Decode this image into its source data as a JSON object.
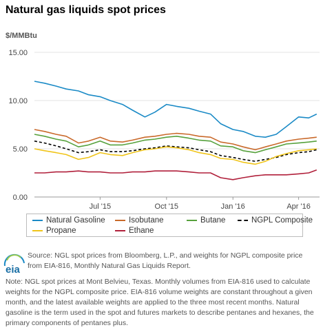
{
  "title": "Natural gas liquids spot prices",
  "logo_text": "eia",
  "source": "Source: NGL spot prices from Bloomberg, L.P., and weights for NGPL composite price from EIA-816, Monthly Natural Gas Liquids Report.",
  "note": "Note: NGL spot prices at Mont Belvieu, Texas. Monthly volumes from EIA-816 used to calculate weights for the NGPL composite price. EIA-816 volume weights are constant throughout a given month, and the latest available weights are applied to the three most recent months. Natural gasoline is the term used in the spot and futures markets to describe pentanes and hexanes, the primary components of pentanes plus.",
  "chart_data": {
    "type": "line",
    "title": "Natural gas liquids spot prices",
    "ylabel": "$/MMBtu",
    "xlabel": "",
    "ylim": [
      0,
      15
    ],
    "yticks": [
      "0.00",
      "5.00",
      "10.00",
      "15.00"
    ],
    "xlim": [
      "2015-04-01",
      "2016-04-30"
    ],
    "xticks": [
      {
        "date": "2015-07-01",
        "label": "Jul '15"
      },
      {
        "date": "2015-10-01",
        "label": "Oct '15"
      },
      {
        "date": "2016-01-01",
        "label": "Jan '16"
      },
      {
        "date": "2016-04-01",
        "label": "Apr '16"
      }
    ],
    "grid": "horizontal",
    "legend": "bottom",
    "x": [
      "2015-04-01",
      "2015-04-15",
      "2015-05-01",
      "2015-05-15",
      "2015-06-01",
      "2015-06-15",
      "2015-07-01",
      "2015-07-15",
      "2015-08-01",
      "2015-08-15",
      "2015-09-01",
      "2015-09-15",
      "2015-10-01",
      "2015-10-15",
      "2015-11-01",
      "2015-11-15",
      "2015-12-01",
      "2015-12-15",
      "2016-01-01",
      "2016-01-15",
      "2016-02-01",
      "2016-02-15",
      "2016-03-01",
      "2016-03-15",
      "2016-04-01",
      "2016-04-15",
      "2016-04-26"
    ],
    "series": [
      {
        "name": "Natural Gasoline",
        "color": "#1a8ac6",
        "dash": false,
        "values": [
          12.0,
          11.8,
          11.5,
          11.2,
          11.0,
          10.6,
          10.4,
          10.0,
          9.6,
          9.0,
          8.3,
          8.8,
          9.6,
          9.4,
          9.2,
          8.9,
          8.6,
          7.6,
          7.0,
          6.8,
          6.3,
          6.2,
          6.5,
          7.3,
          8.3,
          8.2,
          8.6
        ]
      },
      {
        "name": "Isobutane",
        "color": "#c9692a",
        "dash": false,
        "values": [
          7.0,
          6.8,
          6.5,
          6.3,
          5.6,
          5.8,
          6.2,
          5.8,
          5.7,
          5.9,
          6.2,
          6.3,
          6.5,
          6.6,
          6.5,
          6.3,
          6.2,
          5.7,
          5.5,
          5.2,
          4.9,
          5.2,
          5.5,
          5.8,
          6.0,
          6.1,
          6.2
        ]
      },
      {
        "name": "Butane",
        "color": "#56a13c",
        "dash": false,
        "values": [
          6.5,
          6.3,
          6.0,
          5.8,
          5.2,
          5.4,
          5.8,
          5.4,
          5.4,
          5.6,
          5.9,
          6.0,
          6.2,
          6.3,
          6.1,
          5.9,
          5.8,
          5.3,
          5.2,
          4.8,
          4.6,
          4.9,
          5.2,
          5.5,
          5.6,
          5.7,
          5.8
        ]
      },
      {
        "name": "NGPL Composite",
        "color": "#000000",
        "dash": true,
        "values": [
          5.8,
          5.6,
          5.3,
          5.0,
          4.6,
          4.7,
          4.9,
          4.7,
          4.7,
          4.8,
          5.0,
          5.1,
          5.3,
          5.2,
          5.1,
          4.9,
          4.7,
          4.3,
          4.1,
          3.9,
          3.7,
          3.9,
          4.1,
          4.4,
          4.6,
          4.7,
          4.9
        ]
      },
      {
        "name": "Propane",
        "color": "#f0c419",
        "dash": false,
        "values": [
          5.0,
          4.8,
          4.6,
          4.4,
          3.9,
          4.1,
          4.6,
          4.4,
          4.3,
          4.6,
          4.9,
          5.0,
          5.2,
          5.1,
          4.9,
          4.6,
          4.4,
          4.0,
          3.9,
          3.6,
          3.4,
          3.7,
          4.2,
          4.5,
          4.8,
          4.9,
          5.0
        ]
      },
      {
        "name": "Ethane",
        "color": "#b01f3a",
        "dash": false,
        "values": [
          2.5,
          2.5,
          2.6,
          2.6,
          2.7,
          2.6,
          2.6,
          2.5,
          2.5,
          2.6,
          2.6,
          2.7,
          2.7,
          2.7,
          2.6,
          2.5,
          2.5,
          2.0,
          1.8,
          2.0,
          2.2,
          2.3,
          2.3,
          2.3,
          2.4,
          2.5,
          2.8
        ]
      }
    ]
  }
}
